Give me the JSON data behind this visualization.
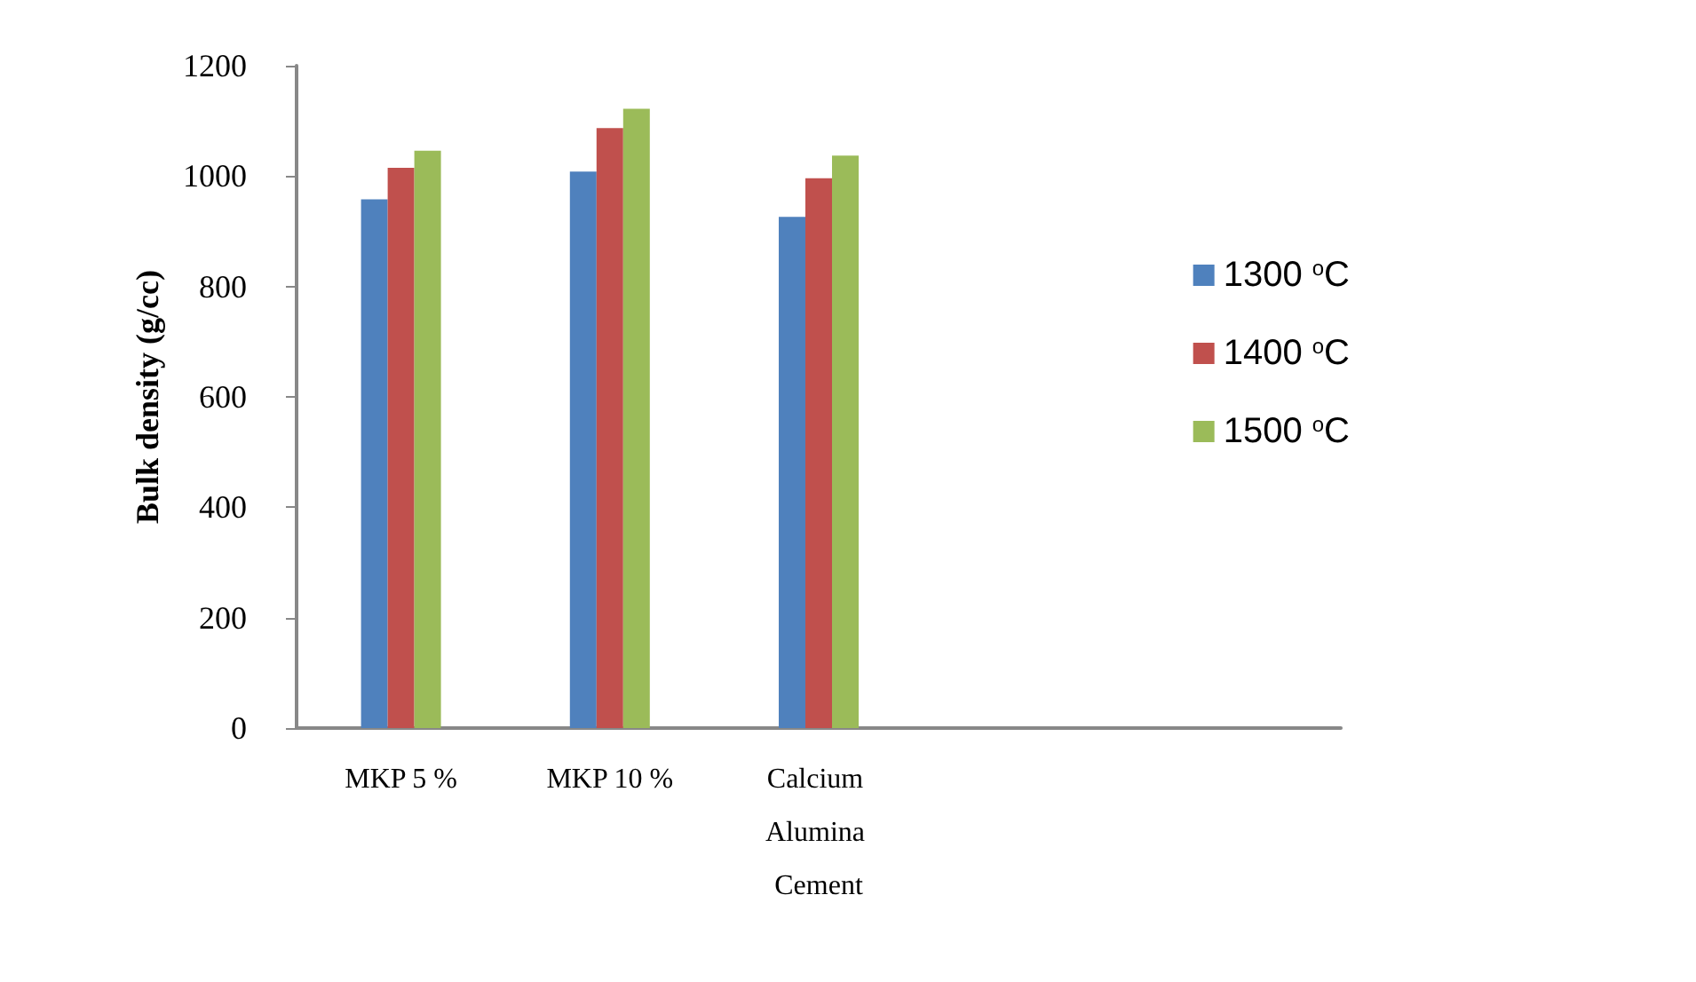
{
  "chart_data": {
    "type": "bar",
    "ylabel": "Bulk density (g/cc)",
    "categories": [
      "MKP 5 %",
      "MKP 10 %",
      "Calcium Alumina Cement",
      null,
      null
    ],
    "series": [
      {
        "name": "1300 $^{o}$C",
        "color": "#4f81bd",
        "values": [
          958,
          1008,
          926,
          null,
          null
        ]
      },
      {
        "name": "1400 $^{o}$C",
        "color": "#c0504d",
        "values": [
          1015,
          1087,
          996,
          null,
          null
        ]
      },
      {
        "name": "1500 $^{o}$C",
        "color": "#9bbb59",
        "values": [
          1046,
          1122,
          1037,
          null,
          null
        ]
      }
    ],
    "ylim": [
      0,
      1200
    ],
    "yticks": [
      0,
      200,
      400,
      600,
      800,
      1000,
      1200
    ],
    "grid": false,
    "legend": "right"
  }
}
